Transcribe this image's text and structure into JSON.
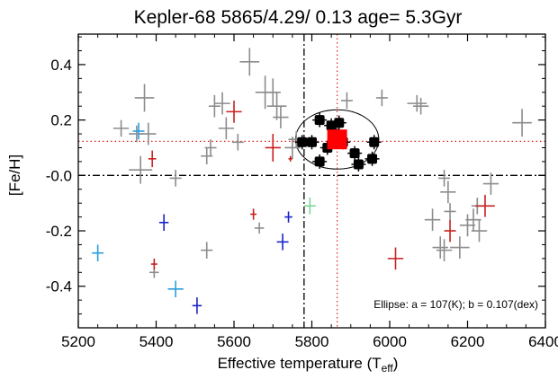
{
  "chart_data": {
    "type": "scatter",
    "title": "Kepler-68  5865/4.29/ 0.13  age= 5.3Gyr",
    "xlabel": "Effective temperature (T",
    "xlabel_sub": "eff",
    "xlabel_close": ")",
    "ylabel": "[Fe/H]",
    "xlim": [
      5200,
      6400
    ],
    "ylim": [
      -0.55,
      0.51
    ],
    "xticks": [
      5200,
      5400,
      5600,
      5800,
      6000,
      6200,
      6400
    ],
    "yticks": [
      -0.4,
      -0.2,
      -0.0,
      0.2,
      0.4
    ],
    "ytick_labels": [
      "-0.4",
      "-0.2",
      "-0.0",
      "0.2",
      "0.4"
    ],
    "annotation": "Ellipse: a = 107(K); b = 0.107(dex)",
    "target": {
      "teff": 5865,
      "feh": 0.13
    },
    "ellipse": {
      "a": 107,
      "b": 0.107
    },
    "reference_lines": {
      "vertical_dashdot": 5780,
      "horizontal_dashdot": 0.0,
      "vertical_dotted": 5865,
      "horizontal_dotted": 0.123
    },
    "colors": {
      "gray": "#8c8c8c",
      "red": "#c8201f",
      "blue": "#1a23c8",
      "lightblue": "#2a9de0",
      "green": "#7ed396",
      "black": "#000000",
      "target": "#ff0000",
      "dotted": "#e02020"
    },
    "series": [
      {
        "color": "gray",
        "points": [
          [
            5310,
            0.17,
            20,
            0.03
          ],
          [
            5350,
            0.15,
            20,
            0.03
          ],
          [
            5380,
            0.15,
            20,
            0.04
          ],
          [
            5370,
            0.28,
            25,
            0.05
          ],
          [
            5360,
            0.02,
            30,
            0.05
          ],
          [
            5450,
            -0.01,
            15,
            0.03
          ],
          [
            5530,
            0.07,
            15,
            0.03
          ],
          [
            5540,
            0.1,
            15,
            0.03
          ],
          [
            5550,
            0.25,
            15,
            0.04
          ],
          [
            5570,
            0.26,
            20,
            0.04
          ],
          [
            5580,
            0.17,
            20,
            0.04
          ],
          [
            5610,
            0.12,
            15,
            0.03
          ],
          [
            5640,
            0.41,
            25,
            0.05
          ],
          [
            5680,
            0.3,
            25,
            0.06
          ],
          [
            5700,
            0.3,
            20,
            0.05
          ],
          [
            5710,
            0.25,
            25,
            0.05
          ],
          [
            5720,
            0.21,
            20,
            0.04
          ],
          [
            5750,
            0.1,
            20,
            0.04
          ],
          [
            5760,
            0.13,
            20,
            0.03
          ],
          [
            5665,
            -0.19,
            12,
            0.02
          ],
          [
            5530,
            -0.27,
            15,
            0.03
          ],
          [
            5395,
            -0.35,
            12,
            0.02
          ],
          [
            5890,
            0.27,
            15,
            0.03
          ],
          [
            5980,
            0.28,
            15,
            0.03
          ],
          [
            6070,
            0.26,
            25,
            0.03
          ],
          [
            6080,
            0.25,
            20,
            0.03
          ],
          [
            6110,
            -0.16,
            20,
            0.04
          ],
          [
            6140,
            -0.01,
            15,
            0.03
          ],
          [
            6150,
            -0.06,
            20,
            0.04
          ],
          [
            6155,
            -0.13,
            15,
            0.03
          ],
          [
            6130,
            -0.26,
            20,
            0.04
          ],
          [
            6140,
            -0.27,
            20,
            0.04
          ],
          [
            6180,
            -0.26,
            25,
            0.04
          ],
          [
            6200,
            -0.18,
            20,
            0.04
          ],
          [
            6215,
            -0.16,
            20,
            0.04
          ],
          [
            6225,
            -0.11,
            15,
            0.03
          ],
          [
            6230,
            -0.2,
            20,
            0.04
          ],
          [
            6260,
            -0.03,
            20,
            0.04
          ],
          [
            6340,
            0.19,
            25,
            0.05
          ]
        ]
      },
      {
        "color": "red",
        "points": [
          [
            5390,
            0.06,
            10,
            0.03
          ],
          [
            5600,
            0.23,
            20,
            0.04
          ],
          [
            5700,
            0.1,
            20,
            0.05
          ],
          [
            5745,
            0.06,
            5,
            0.01
          ],
          [
            5650,
            -0.14,
            8,
            0.02
          ],
          [
            5395,
            -0.32,
            8,
            0.02
          ],
          [
            6015,
            -0.3,
            20,
            0.04
          ],
          [
            6155,
            -0.2,
            15,
            0.04
          ],
          [
            6245,
            -0.11,
            25,
            0.04
          ]
        ]
      },
      {
        "color": "blue",
        "points": [
          [
            5420,
            -0.17,
            12,
            0.03
          ],
          [
            5740,
            -0.15,
            10,
            0.02
          ],
          [
            5725,
            -0.24,
            15,
            0.03
          ],
          [
            5505,
            -0.47,
            12,
            0.03
          ]
        ]
      },
      {
        "color": "lightblue",
        "points": [
          [
            5250,
            -0.28,
            15,
            0.03
          ],
          [
            5355,
            0.16,
            15,
            0.03
          ],
          [
            5450,
            -0.41,
            20,
            0.03
          ]
        ]
      },
      {
        "color": "green",
        "points": [
          [
            5795,
            -0.11,
            15,
            0.03
          ]
        ]
      },
      {
        "color": "black",
        "points": [
          [
            5775,
            0.12
          ],
          [
            5800,
            0.12
          ],
          [
            5820,
            0.2
          ],
          [
            5850,
            0.18
          ],
          [
            5860,
            0.15
          ],
          [
            5870,
            0.19
          ],
          [
            5880,
            0.12
          ],
          [
            5910,
            0.08
          ],
          [
            5920,
            0.04
          ],
          [
            5960,
            0.12
          ],
          [
            5955,
            0.06
          ],
          [
            5820,
            0.05
          ],
          [
            5840,
            0.1
          ]
        ]
      }
    ]
  }
}
